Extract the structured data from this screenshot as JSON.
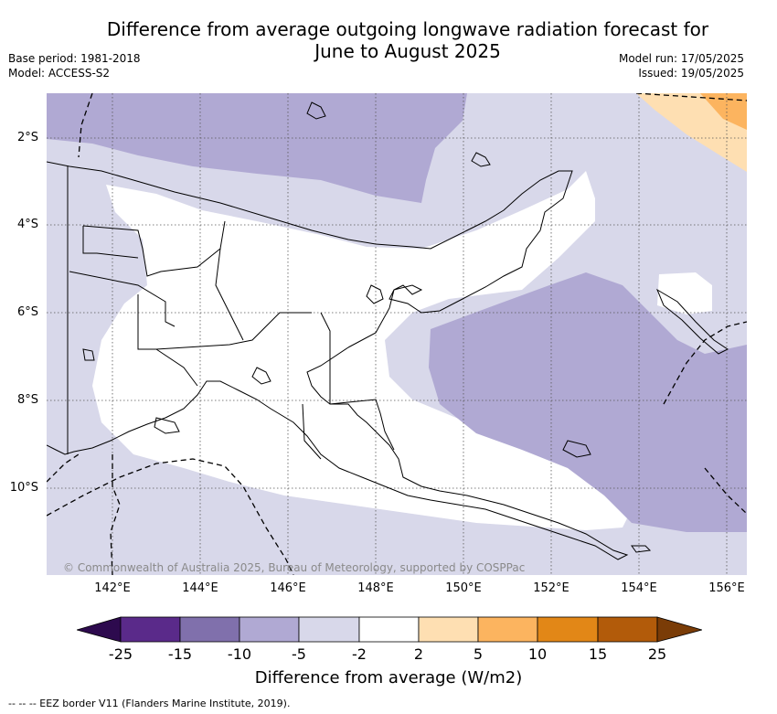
{
  "title_line1": "Difference from average outgoing longwave radiation forecast for",
  "title_line2": "June to August 2025",
  "base_period": "Base period: 1981-2018",
  "model": "Model: ACCESS-S2",
  "model_run": "Model run: 17/05/2025",
  "issued": "Issued: 19/05/2025",
  "lat_labels": [
    "2°S",
    "4°S",
    "6°S",
    "8°S",
    "10°S"
  ],
  "lon_labels": [
    "142°E",
    "144°E",
    "146°E",
    "148°E",
    "150°E",
    "152°E",
    "154°E",
    "156°E"
  ],
  "copyright": "© Commonwealth of Australia 2025, Bureau of Meteorology, supported by COSPPac",
  "colorbar": {
    "title": "Difference from average (W/m2)",
    "ticks": [
      "-25",
      "-15",
      "-10",
      "-5",
      "-2",
      "2",
      "5",
      "10",
      "15",
      "25"
    ],
    "colors": [
      "#2d0a4e",
      "#5a2a8a",
      "#8070ac",
      "#b0a9d3",
      "#d8d8ea",
      "#ffffff",
      "#fedfb2",
      "#fcb45f",
      "#e28717",
      "#b25b0a",
      "#7a3c07"
    ]
  },
  "footnote": "-- -- -- EEZ border V11 (Flanders Marine Institute, 2019)."
}
